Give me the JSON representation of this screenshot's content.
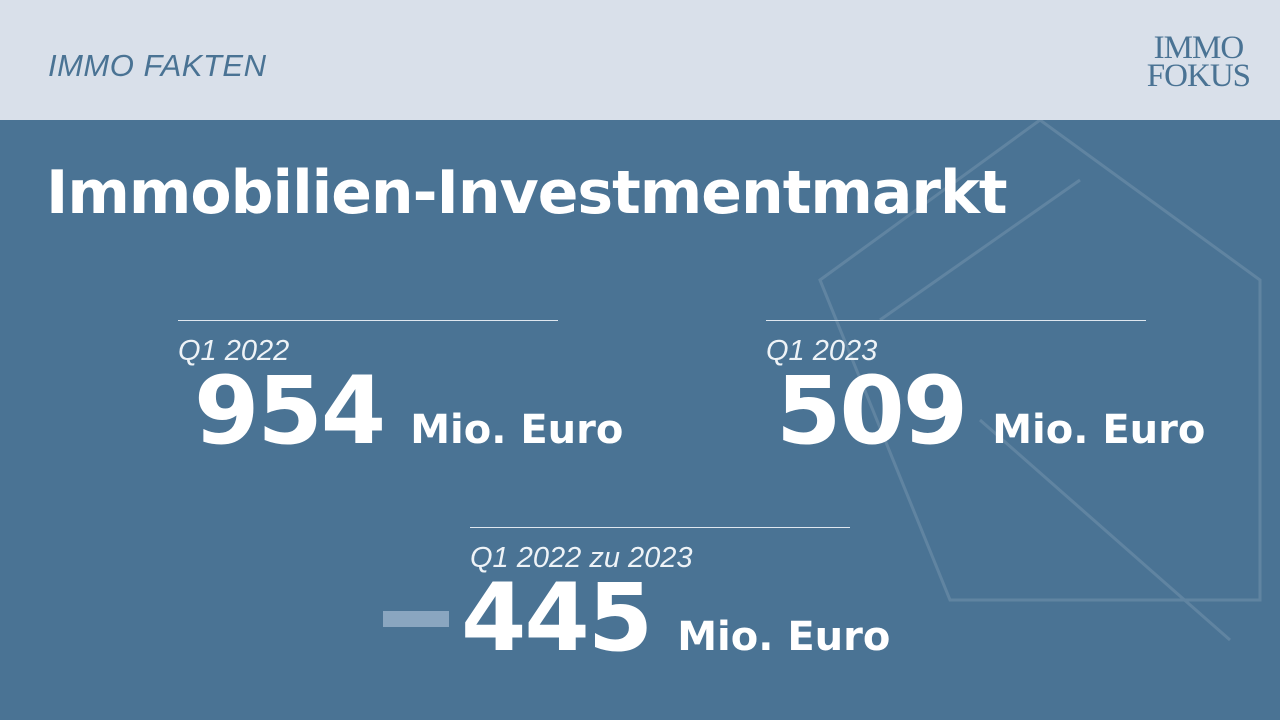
{
  "header": {
    "brand": "IMMO FAKTEN",
    "logo": [
      "IMMO",
      "FOKUS"
    ]
  },
  "title": "Immobilien-Investmentmarkt",
  "stats": [
    {
      "label": "Q1 2022",
      "value": "954",
      "unit": "Mio. Euro"
    },
    {
      "label": "Q1 2023",
      "value": "509",
      "unit": "Mio. Euro"
    },
    {
      "label": "Q1 2022 zu 2023",
      "value": "445",
      "sign": "negative",
      "unit": "Mio. Euro"
    }
  ],
  "colors": {
    "background": "#4a7394",
    "header": "#d9e0ea",
    "minus_bar": "#8aa6c0"
  }
}
